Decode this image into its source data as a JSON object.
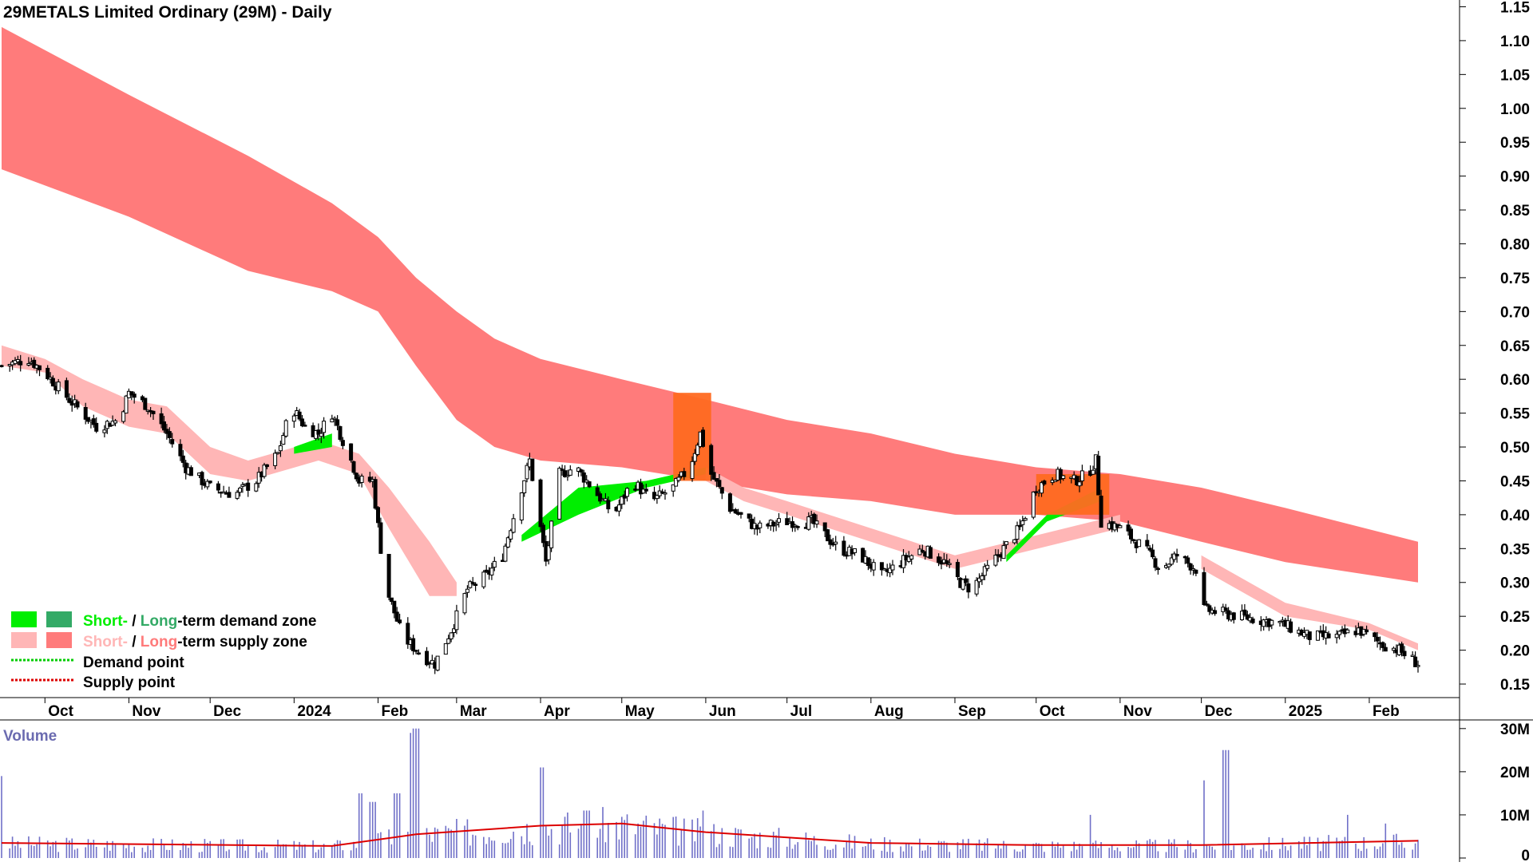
{
  "colors": {
    "long_supply": "#ff7b7b",
    "short_supply": "#ffb6b6",
    "short_demand": "#00ee00",
    "long_demand": "#33aa66",
    "orange_zone": "#ff6a21",
    "volume_bar": "#7070c8",
    "volume_ma": "#dd0000",
    "demand_point": "#00cc00",
    "supply_point": "#dd0000"
  },
  "legend": {
    "demand_short": "Short-",
    "demand_sep": " / ",
    "demand_long": "Long",
    "demand_rest": "-term demand zone",
    "supply_short": "Short-",
    "supply_sep": " / ",
    "supply_long": "Long",
    "supply_rest": "-term supply zone",
    "demand_point": "Demand point",
    "supply_point": "Supply point"
  },
  "chart_data": {
    "type": "candlestick",
    "title": "29METALS Limited Ordinary (29M) - Daily",
    "price_axis": {
      "ylim": [
        0.13,
        1.16
      ],
      "ticks": [
        "1.15",
        "1.10",
        "1.05",
        "1.00",
        "0.95",
        "0.90",
        "0.85",
        "0.80",
        "0.75",
        "0.70",
        "0.65",
        "0.60",
        "0.55",
        "0.50",
        "0.45",
        "0.40",
        "0.35",
        "0.30",
        "0.25",
        "0.20",
        "0.15"
      ],
      "position": "right"
    },
    "volume_axis": {
      "label": "Volume",
      "ylim": [
        0,
        32
      ],
      "ticks": [
        "30M",
        "20M",
        "10M",
        "0"
      ],
      "unit": "M"
    },
    "time_axis": {
      "start": "2023-09-15",
      "end": "2025-02-19",
      "labels": [
        {
          "text": "Oct",
          "date": "2023-10-01"
        },
        {
          "text": "Nov",
          "date": "2023-11-01"
        },
        {
          "text": "Dec",
          "date": "2023-12-01"
        },
        {
          "text": "2024",
          "date": "2024-01-01"
        },
        {
          "text": "Feb",
          "date": "2024-02-01"
        },
        {
          "text": "Mar",
          "date": "2024-03-01"
        },
        {
          "text": "Apr",
          "date": "2024-04-01"
        },
        {
          "text": "May",
          "date": "2024-05-01"
        },
        {
          "text": "Jun",
          "date": "2024-06-01"
        },
        {
          "text": "Jul",
          "date": "2024-07-01"
        },
        {
          "text": "Aug",
          "date": "2024-08-01"
        },
        {
          "text": "Sep",
          "date": "2024-09-01"
        },
        {
          "text": "Oct",
          "date": "2024-10-01"
        },
        {
          "text": "Nov",
          "date": "2024-11-01"
        },
        {
          "text": "Dec",
          "date": "2024-12-01"
        },
        {
          "text": "2025",
          "date": "2025-01-01"
        },
        {
          "text": "Feb",
          "date": "2025-02-01"
        }
      ]
    },
    "price_path": [
      [
        "2023-09-15",
        0.62
      ],
      [
        "2023-09-25",
        0.63
      ],
      [
        "2023-10-01",
        0.61
      ],
      [
        "2023-10-10",
        0.57
      ],
      [
        "2023-10-20",
        0.53
      ],
      [
        "2023-10-28",
        0.54
      ],
      [
        "2023-11-01",
        0.58
      ],
      [
        "2023-11-08",
        0.56
      ],
      [
        "2023-11-15",
        0.52
      ],
      [
        "2023-11-22",
        0.47
      ],
      [
        "2023-12-01",
        0.44
      ],
      [
        "2023-12-10",
        0.43
      ],
      [
        "2023-12-18",
        0.45
      ],
      [
        "2023-12-26",
        0.49
      ],
      [
        "2023-12-31",
        0.56
      ],
      [
        "2024-01-05",
        0.53
      ],
      [
        "2024-01-10",
        0.52
      ],
      [
        "2024-01-15",
        0.55
      ],
      [
        "2024-01-19",
        0.51
      ],
      [
        "2024-01-25",
        0.45
      ],
      [
        "2024-01-30",
        0.45
      ],
      [
        "2024-02-02",
        0.35
      ],
      [
        "2024-02-05",
        0.28
      ],
      [
        "2024-02-10",
        0.22
      ],
      [
        "2024-02-18",
        0.19
      ],
      [
        "2024-02-22",
        0.18
      ],
      [
        "2024-02-28",
        0.23
      ],
      [
        "2024-03-05",
        0.29
      ],
      [
        "2024-03-12",
        0.31
      ],
      [
        "2024-03-18",
        0.34
      ],
      [
        "2024-03-25",
        0.44
      ],
      [
        "2024-03-28",
        0.48
      ],
      [
        "2024-04-03",
        0.33
      ],
      [
        "2024-04-08",
        0.46
      ],
      [
        "2024-04-14",
        0.47
      ],
      [
        "2024-04-20",
        0.44
      ],
      [
        "2024-04-28",
        0.4
      ],
      [
        "2024-05-05",
        0.45
      ],
      [
        "2024-05-12",
        0.42
      ],
      [
        "2024-05-20",
        0.44
      ],
      [
        "2024-05-26",
        0.47
      ],
      [
        "2024-05-30",
        0.52
      ],
      [
        "2024-06-03",
        0.46
      ],
      [
        "2024-06-10",
        0.41
      ],
      [
        "2024-06-20",
        0.38
      ],
      [
        "2024-06-30",
        0.39
      ],
      [
        "2024-07-10",
        0.39
      ],
      [
        "2024-07-20",
        0.35
      ],
      [
        "2024-07-28",
        0.34
      ],
      [
        "2024-08-05",
        0.31
      ],
      [
        "2024-08-12",
        0.33
      ],
      [
        "2024-08-20",
        0.35
      ],
      [
        "2024-08-28",
        0.33
      ],
      [
        "2024-09-03",
        0.3
      ],
      [
        "2024-09-07",
        0.29
      ],
      [
        "2024-09-15",
        0.33
      ],
      [
        "2024-09-25",
        0.38
      ],
      [
        "2024-10-01",
        0.44
      ],
      [
        "2024-10-08",
        0.46
      ],
      [
        "2024-10-15",
        0.45
      ],
      [
        "2024-10-20",
        0.46
      ],
      [
        "2024-10-23",
        0.48
      ],
      [
        "2024-10-25",
        0.39
      ],
      [
        "2024-11-01",
        0.38
      ],
      [
        "2024-11-10",
        0.35
      ],
      [
        "2024-11-16",
        0.32
      ],
      [
        "2024-11-22",
        0.34
      ],
      [
        "2024-11-29",
        0.32
      ],
      [
        "2024-12-02",
        0.26
      ],
      [
        "2024-12-15",
        0.25
      ],
      [
        "2024-12-30",
        0.24
      ],
      [
        "2025-01-10",
        0.22
      ],
      [
        "2025-01-20",
        0.22
      ],
      [
        "2025-01-28",
        0.23
      ],
      [
        "2025-02-05",
        0.21
      ],
      [
        "2025-02-12",
        0.2
      ],
      [
        "2025-02-19",
        0.18
      ]
    ],
    "long_term_supply_zone": [
      [
        "2023-09-15",
        0.91,
        1.12
      ],
      [
        "2023-11-01",
        0.84,
        1.02
      ],
      [
        "2023-12-15",
        0.76,
        0.93
      ],
      [
        "2024-01-15",
        0.73,
        0.86
      ],
      [
        "2024-02-01",
        0.7,
        0.81
      ],
      [
        "2024-02-15",
        0.62,
        0.75
      ],
      [
        "2024-03-01",
        0.54,
        0.7
      ],
      [
        "2024-03-15",
        0.5,
        0.66
      ],
      [
        "2024-04-01",
        0.48,
        0.63
      ],
      [
        "2024-05-01",
        0.47,
        0.6
      ],
      [
        "2024-06-01",
        0.45,
        0.57
      ],
      [
        "2024-07-01",
        0.43,
        0.54
      ],
      [
        "2024-08-01",
        0.42,
        0.52
      ],
      [
        "2024-09-01",
        0.4,
        0.49
      ],
      [
        "2024-10-01",
        0.4,
        0.47
      ],
      [
        "2024-11-01",
        0.39,
        0.46
      ],
      [
        "2024-12-01",
        0.36,
        0.44
      ],
      [
        "2025-01-01",
        0.33,
        0.41
      ],
      [
        "2025-02-19",
        0.3,
        0.36
      ]
    ],
    "short_term_supply_zone": [
      [
        "2023-09-15",
        0.62,
        0.65
      ],
      [
        "2023-10-01",
        0.61,
        0.63
      ],
      [
        "2023-10-15",
        0.56,
        0.6
      ],
      [
        "2023-11-01",
        0.53,
        0.57
      ],
      [
        "2023-11-15",
        0.52,
        0.56
      ],
      [
        "2023-12-01",
        0.46,
        0.5
      ],
      [
        "2023-12-15",
        0.45,
        0.48
      ],
      [
        "2024-01-10",
        0.48,
        0.51
      ],
      [
        "2024-01-25",
        0.46,
        0.49
      ],
      [
        "2024-02-05",
        0.38,
        0.44
      ],
      [
        "2024-02-20",
        0.28,
        0.36
      ],
      [
        "2024-03-01",
        0.28,
        0.3
      ],
      [
        "2024-06-01",
        0.45,
        0.47
      ],
      [
        "2024-06-15",
        0.42,
        0.44
      ],
      [
        "2024-07-01",
        0.4,
        0.42
      ],
      [
        "2024-08-01",
        0.36,
        0.38
      ],
      [
        "2024-09-01",
        0.32,
        0.34
      ],
      [
        "2024-11-01",
        0.38,
        0.4
      ],
      [
        "2024-12-01",
        0.32,
        0.34
      ],
      [
        "2025-01-01",
        0.25,
        0.27
      ],
      [
        "2025-02-01",
        0.23,
        0.24
      ],
      [
        "2025-02-19",
        0.2,
        0.21
      ]
    ],
    "short_term_demand_zone": [
      [
        "2024-01-01",
        0.49,
        0.5
      ],
      [
        "2024-01-15",
        0.5,
        0.52
      ],
      [
        "2024-03-25",
        0.36,
        0.37
      ],
      [
        "2024-04-15",
        0.4,
        0.44
      ],
      [
        "2024-05-10",
        0.44,
        0.45
      ],
      [
        "2024-06-01",
        0.46,
        0.47
      ],
      [
        "2024-09-20",
        0.33,
        0.34
      ],
      [
        "2024-10-05",
        0.39,
        0.4
      ],
      [
        "2024-10-25",
        0.42,
        0.44
      ]
    ],
    "orange_zones": [
      {
        "start": "2024-05-20",
        "end": "2024-06-03",
        "low": 0.45,
        "high": 0.58
      },
      {
        "start": "2024-10-01",
        "end": "2024-10-28",
        "low": 0.4,
        "high": 0.46
      }
    ],
    "volume_spikes_m": [
      [
        "2023-09-16",
        19
      ],
      [
        "2024-01-26",
        15
      ],
      [
        "2024-01-30",
        13
      ],
      [
        "2024-02-08",
        15
      ],
      [
        "2024-02-14",
        29
      ],
      [
        "2024-02-15",
        30
      ],
      [
        "2024-04-01",
        21
      ],
      [
        "2024-04-18",
        11
      ],
      [
        "2024-06-01",
        11
      ],
      [
        "2024-10-20",
        10
      ],
      [
        "2024-12-01",
        18
      ],
      [
        "2024-12-10",
        25
      ],
      [
        "2025-01-25",
        10
      ],
      [
        "2025-02-08",
        8
      ]
    ],
    "volume_ma_m": [
      [
        "2023-09-15",
        3.5
      ],
      [
        "2024-01-15",
        2.8
      ],
      [
        "2024-02-15",
        5.5
      ],
      [
        "2024-04-01",
        7.5
      ],
      [
        "2024-05-01",
        8.0
      ],
      [
        "2024-06-01",
        6.0
      ],
      [
        "2024-08-01",
        3.5
      ],
      [
        "2024-10-01",
        3.0
      ],
      [
        "2024-12-01",
        3.0
      ],
      [
        "2025-02-19",
        4.0
      ]
    ]
  }
}
